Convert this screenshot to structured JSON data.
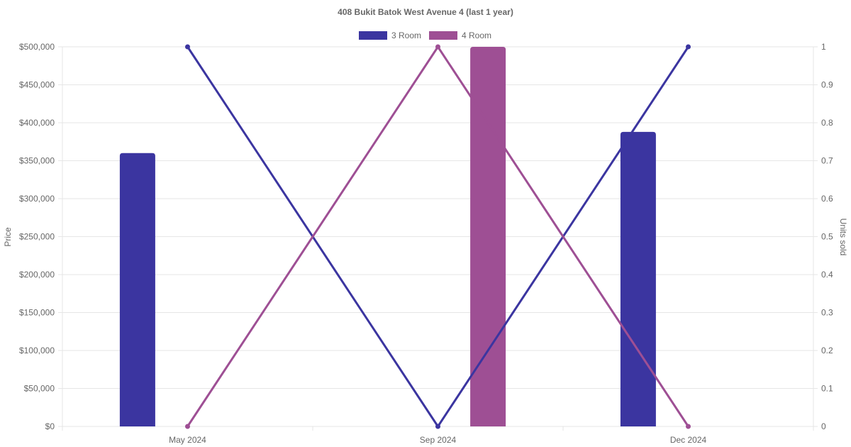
{
  "chart_data": {
    "type": "bar",
    "title": "408 Bukit Batok West Avenue 4 (last 1 year)",
    "categories": [
      "May 2024",
      "Sep 2024",
      "Dec 2024"
    ],
    "ylabel": "Price",
    "y2label": "Units sold",
    "ylim": [
      0,
      500000
    ],
    "y2lim": [
      0,
      1
    ],
    "yticks": [
      "$0",
      "$50,000",
      "$100,000",
      "$150,000",
      "$200,000",
      "$250,000",
      "$300,000",
      "$350,000",
      "$400,000",
      "$450,000",
      "$500,000"
    ],
    "y2ticks": [
      "0",
      "0.1",
      "0.2",
      "0.3",
      "0.4",
      "0.5",
      "0.6",
      "0.7",
      "0.8",
      "0.9",
      "1"
    ],
    "grid": true,
    "legend_position": "top",
    "legend": [
      {
        "label": "3 Room",
        "color": "#3b35a0"
      },
      {
        "label": "4 Room",
        "color": "#9e4f94"
      }
    ],
    "series": [
      {
        "name": "3 Room",
        "kind": "bar",
        "axis": "price",
        "color": "#3b35a0",
        "values": [
          360000,
          null,
          388000
        ]
      },
      {
        "name": "4 Room",
        "kind": "bar",
        "axis": "price",
        "color": "#9e4f94",
        "values": [
          null,
          500000,
          null
        ]
      },
      {
        "name": "3 Room",
        "kind": "line",
        "axis": "units",
        "color": "#3b35a0",
        "values": [
          1,
          0,
          1
        ]
      },
      {
        "name": "4 Room",
        "kind": "line",
        "axis": "units",
        "color": "#9e4f94",
        "values": [
          0,
          1,
          0
        ]
      }
    ]
  }
}
